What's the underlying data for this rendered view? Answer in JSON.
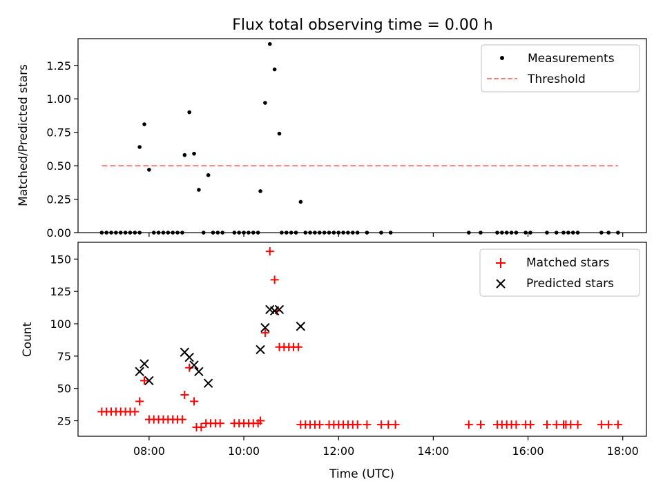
{
  "chart_data": [
    {
      "type": "scatter",
      "title": "Flux total observing time = 0.00 h",
      "xlabel": "",
      "ylabel": "Matched/Predicted stars",
      "xlim": [
        "06:30",
        "18:30"
      ],
      "ylim": [
        0,
        1.45
      ],
      "y_ticks": [
        "0.00",
        "0.25",
        "0.50",
        "0.75",
        "1.00",
        "1.25"
      ],
      "legend_position": "top-right",
      "series": [
        {
          "name": "Measurements",
          "style": "dots",
          "color": "#000000",
          "points": [
            {
              "x": "07:00",
              "y": 0
            },
            {
              "x": "07:06",
              "y": 0
            },
            {
              "x": "07:12",
              "y": 0
            },
            {
              "x": "07:18",
              "y": 0
            },
            {
              "x": "07:24",
              "y": 0
            },
            {
              "x": "07:30",
              "y": 0
            },
            {
              "x": "07:36",
              "y": 0
            },
            {
              "x": "07:42",
              "y": 0
            },
            {
              "x": "07:48",
              "y": 0
            },
            {
              "x": "07:48",
              "y": 0.64
            },
            {
              "x": "07:54",
              "y": 0.81
            },
            {
              "x": "08:00",
              "y": 0.47
            },
            {
              "x": "08:06",
              "y": 0
            },
            {
              "x": "08:12",
              "y": 0
            },
            {
              "x": "08:18",
              "y": 0
            },
            {
              "x": "08:24",
              "y": 0
            },
            {
              "x": "08:30",
              "y": 0
            },
            {
              "x": "08:36",
              "y": 0
            },
            {
              "x": "08:42",
              "y": 0
            },
            {
              "x": "08:45",
              "y": 0.58
            },
            {
              "x": "08:51",
              "y": 0.9
            },
            {
              "x": "08:57",
              "y": 0.59
            },
            {
              "x": "09:03",
              "y": 0.32
            },
            {
              "x": "09:09",
              "y": 0
            },
            {
              "x": "09:15",
              "y": 0.43
            },
            {
              "x": "09:21",
              "y": 0
            },
            {
              "x": "09:27",
              "y": 0
            },
            {
              "x": "09:33",
              "y": 0
            },
            {
              "x": "09:48",
              "y": 0
            },
            {
              "x": "09:54",
              "y": 0
            },
            {
              "x": "10:00",
              "y": 0
            },
            {
              "x": "10:06",
              "y": 0
            },
            {
              "x": "10:12",
              "y": 0
            },
            {
              "x": "10:18",
              "y": 0
            },
            {
              "x": "10:21",
              "y": 0.31
            },
            {
              "x": "10:27",
              "y": 0.97
            },
            {
              "x": "10:33",
              "y": 1.41
            },
            {
              "x": "10:39",
              "y": 1.22
            },
            {
              "x": "10:45",
              "y": 0.74
            },
            {
              "x": "10:48",
              "y": 0
            },
            {
              "x": "10:54",
              "y": 0
            },
            {
              "x": "11:00",
              "y": 0
            },
            {
              "x": "11:06",
              "y": 0
            },
            {
              "x": "11:12",
              "y": 0.23
            },
            {
              "x": "11:18",
              "y": 0
            },
            {
              "x": "11:24",
              "y": 0
            },
            {
              "x": "11:30",
              "y": 0
            },
            {
              "x": "11:36",
              "y": 0
            },
            {
              "x": "11:42",
              "y": 0
            },
            {
              "x": "11:48",
              "y": 0
            },
            {
              "x": "11:54",
              "y": 0
            },
            {
              "x": "12:00",
              "y": 0
            },
            {
              "x": "12:06",
              "y": 0
            },
            {
              "x": "12:12",
              "y": 0
            },
            {
              "x": "12:18",
              "y": 0
            },
            {
              "x": "12:24",
              "y": 0
            },
            {
              "x": "12:36",
              "y": 0
            },
            {
              "x": "12:54",
              "y": 0
            },
            {
              "x": "13:06",
              "y": 0
            },
            {
              "x": "14:45",
              "y": 0
            },
            {
              "x": "15:00",
              "y": 0
            },
            {
              "x": "15:21",
              "y": 0
            },
            {
              "x": "15:27",
              "y": 0
            },
            {
              "x": "15:33",
              "y": 0
            },
            {
              "x": "15:39",
              "y": 0
            },
            {
              "x": "15:45",
              "y": 0
            },
            {
              "x": "15:57",
              "y": 0
            },
            {
              "x": "16:03",
              "y": 0
            },
            {
              "x": "16:24",
              "y": 0
            },
            {
              "x": "16:36",
              "y": 0
            },
            {
              "x": "16:45",
              "y": 0
            },
            {
              "x": "16:51",
              "y": 0
            },
            {
              "x": "16:57",
              "y": 0
            },
            {
              "x": "17:03",
              "y": 0
            },
            {
              "x": "17:33",
              "y": 0
            },
            {
              "x": "17:42",
              "y": 0
            },
            {
              "x": "17:54",
              "y": 0
            }
          ]
        },
        {
          "name": "Threshold",
          "style": "dashed-line",
          "color": "#ff7f7f",
          "points": [
            {
              "x": "07:00",
              "y": 0.5
            },
            {
              "x": "17:54",
              "y": 0.5
            }
          ]
        }
      ]
    },
    {
      "type": "scatter",
      "title": "",
      "xlabel": "Time (UTC)",
      "ylabel": "Count",
      "xlim": [
        "06:30",
        "18:30"
      ],
      "ylim": [
        13,
        163
      ],
      "x_ticks": [
        "08:00",
        "10:00",
        "12:00",
        "14:00",
        "16:00",
        "18:00"
      ],
      "y_ticks": [
        "25",
        "50",
        "75",
        "100",
        "125",
        "150"
      ],
      "legend_position": "top-right",
      "series": [
        {
          "name": "Matched stars",
          "style": "plus",
          "color": "#ff0000",
          "points": [
            {
              "x": "07:00",
              "y": 32
            },
            {
              "x": "07:06",
              "y": 32
            },
            {
              "x": "07:12",
              "y": 32
            },
            {
              "x": "07:18",
              "y": 32
            },
            {
              "x": "07:24",
              "y": 32
            },
            {
              "x": "07:30",
              "y": 32
            },
            {
              "x": "07:36",
              "y": 32
            },
            {
              "x": "07:42",
              "y": 32
            },
            {
              "x": "07:48",
              "y": 40
            },
            {
              "x": "07:54",
              "y": 56
            },
            {
              "x": "08:00",
              "y": 26
            },
            {
              "x": "08:06",
              "y": 26
            },
            {
              "x": "08:12",
              "y": 26
            },
            {
              "x": "08:18",
              "y": 26
            },
            {
              "x": "08:24",
              "y": 26
            },
            {
              "x": "08:30",
              "y": 26
            },
            {
              "x": "08:36",
              "y": 26
            },
            {
              "x": "08:42",
              "y": 26
            },
            {
              "x": "08:45",
              "y": 45
            },
            {
              "x": "08:51",
              "y": 66
            },
            {
              "x": "08:57",
              "y": 40
            },
            {
              "x": "09:00",
              "y": 20
            },
            {
              "x": "09:06",
              "y": 20
            },
            {
              "x": "09:12",
              "y": 23
            },
            {
              "x": "09:18",
              "y": 23
            },
            {
              "x": "09:24",
              "y": 23
            },
            {
              "x": "09:30",
              "y": 23
            },
            {
              "x": "09:48",
              "y": 23
            },
            {
              "x": "09:54",
              "y": 23
            },
            {
              "x": "10:00",
              "y": 23
            },
            {
              "x": "10:06",
              "y": 23
            },
            {
              "x": "10:12",
              "y": 23
            },
            {
              "x": "10:18",
              "y": 23
            },
            {
              "x": "10:21",
              "y": 25
            },
            {
              "x": "10:27",
              "y": 93
            },
            {
              "x": "10:33",
              "y": 156
            },
            {
              "x": "10:39",
              "y": 134
            },
            {
              "x": "10:42",
              "y": 110
            },
            {
              "x": "10:45",
              "y": 82
            },
            {
              "x": "10:51",
              "y": 82
            },
            {
              "x": "10:57",
              "y": 82
            },
            {
              "x": "11:03",
              "y": 82
            },
            {
              "x": "11:09",
              "y": 82
            },
            {
              "x": "11:12",
              "y": 22
            },
            {
              "x": "11:18",
              "y": 22
            },
            {
              "x": "11:24",
              "y": 22
            },
            {
              "x": "11:30",
              "y": 22
            },
            {
              "x": "11:36",
              "y": 22
            },
            {
              "x": "11:48",
              "y": 22
            },
            {
              "x": "11:54",
              "y": 22
            },
            {
              "x": "12:00",
              "y": 22
            },
            {
              "x": "12:06",
              "y": 22
            },
            {
              "x": "12:12",
              "y": 22
            },
            {
              "x": "12:18",
              "y": 22
            },
            {
              "x": "12:24",
              "y": 22
            },
            {
              "x": "12:36",
              "y": 22
            },
            {
              "x": "12:54",
              "y": 22
            },
            {
              "x": "13:03",
              "y": 22
            },
            {
              "x": "13:12",
              "y": 22
            },
            {
              "x": "14:45",
              "y": 22
            },
            {
              "x": "15:00",
              "y": 22
            },
            {
              "x": "15:21",
              "y": 22
            },
            {
              "x": "15:27",
              "y": 22
            },
            {
              "x": "15:33",
              "y": 22
            },
            {
              "x": "15:39",
              "y": 22
            },
            {
              "x": "15:45",
              "y": 22
            },
            {
              "x": "15:57",
              "y": 22
            },
            {
              "x": "16:03",
              "y": 22
            },
            {
              "x": "16:24",
              "y": 22
            },
            {
              "x": "16:36",
              "y": 22
            },
            {
              "x": "16:45",
              "y": 22
            },
            {
              "x": "16:48",
              "y": 22
            },
            {
              "x": "16:54",
              "y": 22
            },
            {
              "x": "17:03",
              "y": 22
            },
            {
              "x": "17:33",
              "y": 22
            },
            {
              "x": "17:42",
              "y": 22
            },
            {
              "x": "17:54",
              "y": 22
            }
          ]
        },
        {
          "name": "Predicted stars",
          "style": "cross",
          "color": "#000000",
          "points": [
            {
              "x": "07:48",
              "y": 63
            },
            {
              "x": "07:54",
              "y": 69
            },
            {
              "x": "08:00",
              "y": 56
            },
            {
              "x": "08:45",
              "y": 78
            },
            {
              "x": "08:51",
              "y": 74
            },
            {
              "x": "08:57",
              "y": 68
            },
            {
              "x": "09:03",
              "y": 63
            },
            {
              "x": "09:15",
              "y": 54
            },
            {
              "x": "10:21",
              "y": 80
            },
            {
              "x": "10:27",
              "y": 97
            },
            {
              "x": "10:33",
              "y": 111
            },
            {
              "x": "10:39",
              "y": 110
            },
            {
              "x": "10:45",
              "y": 111
            },
            {
              "x": "11:12",
              "y": 98
            }
          ]
        }
      ]
    }
  ]
}
